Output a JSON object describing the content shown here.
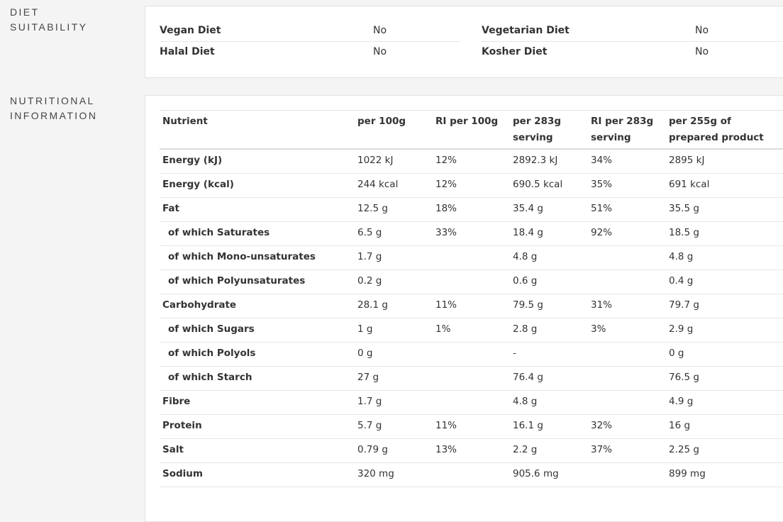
{
  "diet": {
    "title": "DIET SUITABILITY",
    "items": [
      {
        "label": "Vegan Diet",
        "value": "No"
      },
      {
        "label": "Vegetarian Diet",
        "value": "No"
      },
      {
        "label": "Halal Diet",
        "value": "No"
      },
      {
        "label": "Kosher Diet",
        "value": "No"
      }
    ]
  },
  "nutrition": {
    "title": "NUTRITIONAL INFORMATION",
    "header": [
      "Nutrient",
      "per 100g",
      "RI per 100g",
      "per 283g serving",
      "RI per 283g serving",
      "per 255g of prepared product"
    ],
    "rows": [
      {
        "cells": [
          "Energy (kJ)",
          "1022 kJ",
          "12%",
          "2892.3 kJ",
          "34%",
          "2895 kJ"
        ]
      },
      {
        "cells": [
          "Energy (kcal)",
          "244 kcal",
          "12%",
          "690.5 kcal",
          "35%",
          "691 kcal"
        ]
      },
      {
        "cells": [
          "Fat",
          "12.5 g",
          "18%",
          "35.4 g",
          "51%",
          "35.5 g"
        ],
        "components": [
          {
            "cells": [
              "of which Saturates",
              "6.5 g",
              "33%",
              "18.4 g",
              "92%",
              "18.5 g"
            ]
          },
          {
            "cells": [
              "of which Mono-unsaturates",
              "1.7 g",
              null,
              "4.8 g",
              null,
              "4.8 g"
            ]
          },
          {
            "cells": [
              "of which Polyunsaturates",
              "0.2 g",
              null,
              "0.6 g",
              null,
              "0.4 g"
            ]
          }
        ]
      },
      {
        "cells": [
          "Carbohydrate",
          "28.1 g",
          "11%",
          "79.5 g",
          "31%",
          "79.7 g"
        ],
        "components": [
          {
            "cells": [
              "of which Sugars",
              "1 g",
              "1%",
              "2.8 g",
              "3%",
              "2.9 g"
            ]
          },
          {
            "cells": [
              "of which Polyols",
              "0 g",
              null,
              "-",
              null,
              "0 g"
            ]
          },
          {
            "cells": [
              "of which Starch",
              "27 g",
              null,
              "76.4 g",
              null,
              "76.5 g"
            ]
          }
        ]
      },
      {
        "cells": [
          "Fibre",
          "1.7 g",
          null,
          "4.8 g",
          null,
          "4.9 g"
        ]
      },
      {
        "cells": [
          "Protein",
          "5.7 g",
          "11%",
          "16.1 g",
          "32%",
          "16 g"
        ]
      },
      {
        "cells": [
          "Salt",
          "0.79 g",
          "13%",
          "2.2 g",
          "37%",
          "2.25 g"
        ]
      },
      {
        "cells": [
          "Sodium",
          "320 mg",
          null,
          "905.6 mg",
          null,
          "899 mg"
        ]
      }
    ]
  }
}
